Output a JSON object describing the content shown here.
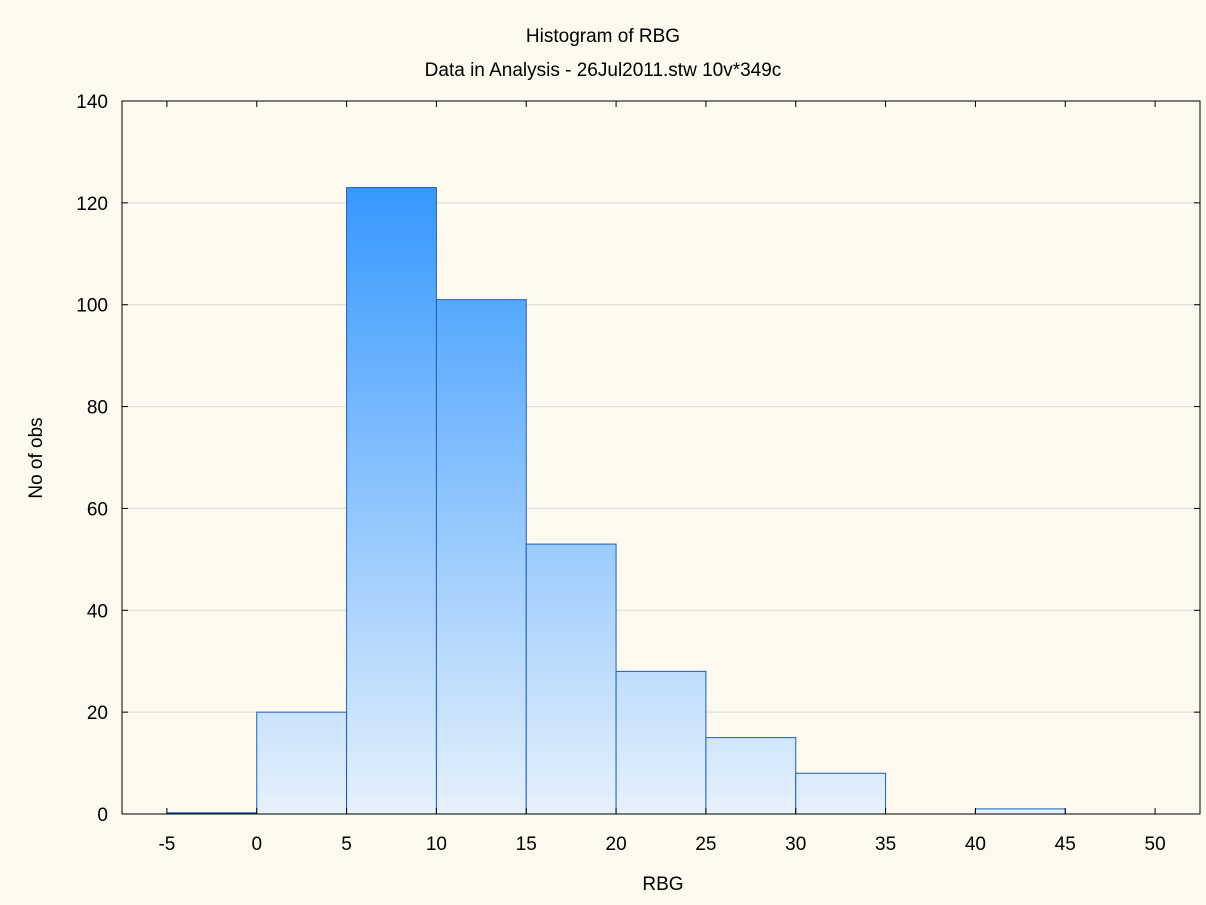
{
  "chart_data": {
    "type": "bar",
    "title": "Histogram of RBG",
    "subtitle": "Data in Analysis - 26Jul2011.stw 10v*349c",
    "xlabel": "RBG",
    "ylabel": "No of obs",
    "xlim": [
      -7.5,
      52.5
    ],
    "ylim": [
      0,
      140
    ],
    "x_ticks": [
      -5,
      0,
      5,
      10,
      15,
      20,
      25,
      30,
      35,
      40,
      45,
      50
    ],
    "y_ticks": [
      0,
      20,
      40,
      60,
      80,
      100,
      120,
      140
    ],
    "bins": [
      {
        "from": -5,
        "to": 0,
        "value": 0
      },
      {
        "from": 0,
        "to": 5,
        "value": 20
      },
      {
        "from": 5,
        "to": 10,
        "value": 123
      },
      {
        "from": 10,
        "to": 15,
        "value": 101
      },
      {
        "from": 15,
        "to": 20,
        "value": 53
      },
      {
        "from": 20,
        "to": 25,
        "value": 28
      },
      {
        "from": 25,
        "to": 30,
        "value": 15
      },
      {
        "from": 30,
        "to": 35,
        "value": 8
      },
      {
        "from": 35,
        "to": 40,
        "value": 0
      },
      {
        "from": 40,
        "to": 45,
        "value": 1
      },
      {
        "from": 45,
        "to": 50,
        "value": 0
      }
    ],
    "grid": true,
    "colors": {
      "background": "#fdf9ee",
      "bar_top": "#1e8cff",
      "bar_bottom": "#e6f1fc",
      "bar_edge": "#1f5fb5",
      "grid": "#d9d9d9",
      "axis": "#000000"
    }
  }
}
